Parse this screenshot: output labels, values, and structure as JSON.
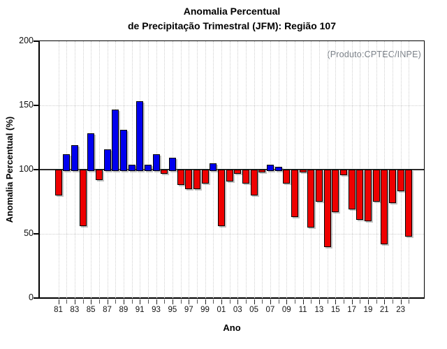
{
  "title": {
    "line1": "Anomalia Percentual",
    "line2": "de Precipitação Trimestral (JFM): Região 107"
  },
  "annotation": "(Produto:CPTEC/INPE)",
  "axes": {
    "x_label": "Ano",
    "y_label": "Anomalia Percentual (%)",
    "y_ticks": [
      "200",
      "150",
      "100",
      "50",
      "0"
    ],
    "x_tick_labels": [
      "81",
      "83",
      "85",
      "87",
      "89",
      "91",
      "93",
      "95",
      "97",
      "99",
      "01",
      "03",
      "05",
      "07",
      "09",
      "11",
      "13",
      "15",
      "17",
      "19",
      "21",
      "23"
    ]
  },
  "colors": {
    "above_baseline": "#0000ee",
    "below_baseline": "#ee0000",
    "bar_outline": "#000000",
    "grid": "#cfcfcf",
    "baseline_line": "#2b2b2b",
    "annotation_text": "#7a8088",
    "axis_text": "#111111"
  },
  "chart_data": {
    "type": "bar",
    "x": [
      "81",
      "82",
      "83",
      "84",
      "85",
      "86",
      "87",
      "88",
      "89",
      "90",
      "91",
      "92",
      "93",
      "94",
      "95",
      "96",
      "97",
      "98",
      "99",
      "00",
      "01",
      "02",
      "03",
      "04",
      "05",
      "06",
      "07",
      "08",
      "09",
      "10",
      "11",
      "12",
      "13",
      "14",
      "15",
      "16",
      "17",
      "18",
      "19",
      "20",
      "21",
      "22",
      "23",
      "24"
    ],
    "values": [
      81,
      112,
      119,
      57,
      128,
      93,
      116,
      147,
      131,
      104,
      153,
      104,
      112,
      98,
      109,
      89,
      86,
      86,
      90,
      105,
      57,
      92,
      98,
      90,
      81,
      99,
      104,
      102,
      90,
      64,
      99,
      56,
      76,
      41,
      68,
      97,
      70,
      62,
      61,
      76,
      43,
      75,
      84,
      49
    ],
    "baseline": 100,
    "ylim": [
      0,
      200
    ],
    "y_tick_step": 50,
    "title": "Anomalia Percentual de Precipitação Trimestral (JFM): Região 107",
    "xlabel": "Ano",
    "ylabel": "Anomalia Percentual (%)",
    "annotation": "(Produto:CPTEC/INPE)",
    "legend": "none",
    "grid": "dotted vertical line per year; dotted horizontal lines at 50 and 150; solid reference line at 100",
    "color_rule": "blue when value >= 100, red when value < 100"
  }
}
